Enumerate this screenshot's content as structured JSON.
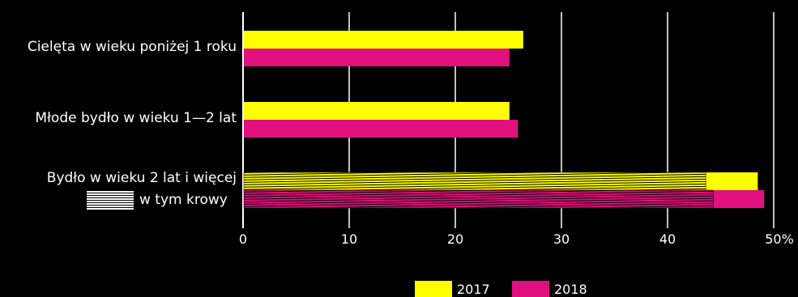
{
  "chart_data": {
    "type": "bar",
    "orientation": "horizontal",
    "categories": [
      "Cielęta w wieku poniżej 1 roku",
      "Młode bydło w wieku 1—2 lat",
      "Bydło w wieku 2 lat i więcej"
    ],
    "series": [
      {
        "name": "2017",
        "color": "#FFFF00",
        "values": [
          26.4,
          25.1,
          48.5
        ]
      },
      {
        "name": "2018",
        "color": "#E0107F",
        "values": [
          25.1,
          25.9,
          49.1
        ]
      }
    ],
    "subset": {
      "label": "w tym krowy",
      "category": "Bydło w wieku 2 lat i więcej",
      "values": [
        43.6,
        44.3
      ]
    },
    "x_ticks": [
      "0",
      "10",
      "20",
      "30",
      "40",
      "50%"
    ],
    "xlim": [
      0,
      50
    ],
    "grid": true,
    "legend_position": "bottom",
    "colors": {
      "background": "#000000",
      "grid": "#ffffff",
      "text": "#ffffff"
    }
  }
}
